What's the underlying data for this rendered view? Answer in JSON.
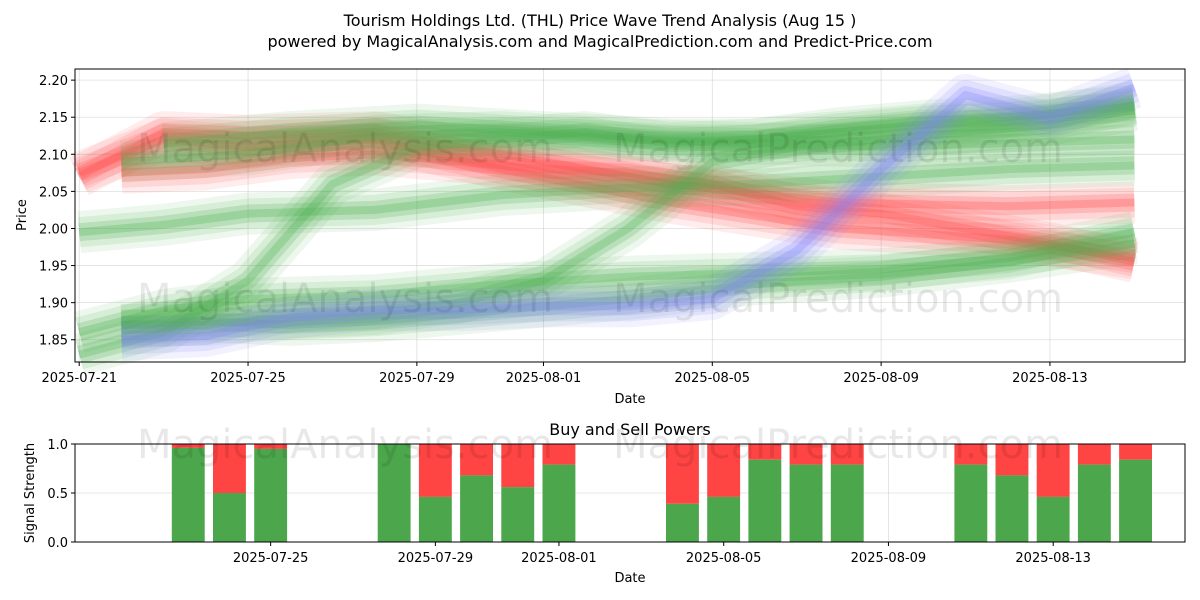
{
  "title": "Tourism Holdings Ltd. (THL) Price Wave Trend Analysis (Aug 15 )",
  "subtitle": "powered by MagicalAnalysis.com and MagicalPrediction.com and Predict-Price.com",
  "watermarks": [
    "MagicalAnalysis.com",
    "MagicalPrediction.com"
  ],
  "colors": {
    "green": "#4caf50",
    "red": "#ff4d4d",
    "blue": "#8080ff",
    "sell": "#ff4444",
    "buy": "#4ca64c"
  },
  "chart_data": [
    {
      "type": "area",
      "title": "",
      "xlabel": "Date",
      "ylabel": "Price",
      "xlim": [
        "2025-07-21",
        "2025-08-16"
      ],
      "ylim": [
        1.82,
        2.215
      ],
      "x_ticks": [
        "2025-07-21",
        "2025-07-25",
        "2025-07-29",
        "2025-08-01",
        "2025-08-05",
        "2025-08-09",
        "2025-08-13"
      ],
      "y_ticks": [
        "1.85",
        "1.90",
        "1.95",
        "2.00",
        "2.05",
        "2.10",
        "2.15",
        "2.20"
      ],
      "grid": true,
      "bands": [
        {
          "color": "red",
          "x": [
            "2025-07-21",
            "2025-07-23",
            "2025-07-25",
            "2025-07-28",
            "2025-07-31",
            "2025-08-04",
            "2025-08-08",
            "2025-08-12",
            "2025-08-15"
          ],
          "y": [
            2.07,
            2.13,
            2.125,
            2.13,
            2.1,
            2.06,
            2.035,
            2.03,
            2.035
          ]
        },
        {
          "color": "red",
          "x": [
            "2025-07-21",
            "2025-07-23",
            "2025-07-25",
            "2025-07-28",
            "2025-07-31",
            "2025-08-04",
            "2025-08-08",
            "2025-08-12",
            "2025-08-15"
          ],
          "y": [
            2.075,
            2.12,
            2.11,
            2.12,
            2.08,
            2.035,
            2.0,
            1.985,
            1.96
          ]
        },
        {
          "color": "red",
          "x": [
            "2025-07-22",
            "2025-07-24",
            "2025-07-26",
            "2025-07-28",
            "2025-07-30",
            "2025-08-01",
            "2025-08-03",
            "2025-08-05",
            "2025-08-07",
            "2025-08-09",
            "2025-08-11",
            "2025-08-13",
            "2025-08-15"
          ],
          "y": [
            2.075,
            2.08,
            2.095,
            2.1,
            2.09,
            2.08,
            2.075,
            2.06,
            2.03,
            2.02,
            2.0,
            1.98,
            1.955
          ]
        },
        {
          "color": "green",
          "x": [
            "2025-07-21",
            "2025-07-23",
            "2025-07-25",
            "2025-07-28",
            "2025-07-31",
            "2025-08-03",
            "2025-08-06",
            "2025-08-09",
            "2025-08-12",
            "2025-08-15"
          ],
          "y": [
            1.995,
            2.005,
            2.02,
            2.025,
            2.045,
            2.055,
            2.06,
            2.07,
            2.08,
            2.085
          ]
        },
        {
          "color": "green",
          "x": [
            "2025-07-21",
            "2025-07-23",
            "2025-07-25",
            "2025-07-28",
            "2025-07-31",
            "2025-08-03",
            "2025-08-06",
            "2025-08-09",
            "2025-08-12",
            "2025-08-15"
          ],
          "y": [
            1.86,
            1.89,
            1.905,
            1.91,
            1.925,
            1.935,
            1.94,
            1.945,
            1.96,
            1.995
          ]
        },
        {
          "color": "green",
          "x": [
            "2025-07-22",
            "2025-07-24",
            "2025-07-26",
            "2025-07-28",
            "2025-07-31",
            "2025-08-03",
            "2025-08-06",
            "2025-08-09",
            "2025-08-12",
            "2025-08-15"
          ],
          "y": [
            1.87,
            1.875,
            1.87,
            1.875,
            1.89,
            1.905,
            1.925,
            1.935,
            1.955,
            1.98
          ]
        },
        {
          "color": "green",
          "x": [
            "2025-07-21",
            "2025-07-23",
            "2025-07-25",
            "2025-07-27",
            "2025-07-29",
            "2025-07-31",
            "2025-08-02",
            "2025-08-04",
            "2025-08-06",
            "2025-08-08",
            "2025-08-10",
            "2025-08-12",
            "2025-08-15"
          ],
          "y": [
            1.83,
            1.86,
            1.93,
            2.06,
            2.11,
            2.12,
            2.13,
            2.115,
            2.12,
            2.13,
            2.14,
            2.145,
            2.17
          ]
        },
        {
          "color": "green",
          "x": [
            "2025-07-22",
            "2025-07-24",
            "2025-07-26",
            "2025-07-28",
            "2025-07-30",
            "2025-08-01",
            "2025-08-03",
            "2025-08-05",
            "2025-08-07",
            "2025-08-09",
            "2025-08-11",
            "2025-08-13",
            "2025-08-15"
          ],
          "y": [
            1.87,
            1.87,
            1.88,
            1.885,
            1.9,
            1.93,
            2.0,
            2.09,
            2.11,
            2.12,
            2.13,
            2.14,
            2.16
          ]
        },
        {
          "color": "green",
          "x": [
            "2025-07-22",
            "2025-07-25",
            "2025-07-28",
            "2025-07-31",
            "2025-08-03",
            "2025-08-06",
            "2025-08-09",
            "2025-08-12",
            "2025-08-15"
          ],
          "y": [
            2.09,
            2.1,
            2.125,
            2.13,
            2.12,
            2.115,
            2.11,
            2.115,
            2.12
          ]
        },
        {
          "color": "green",
          "x": [
            "2025-07-23",
            "2025-07-26",
            "2025-07-29",
            "2025-08-01",
            "2025-08-04",
            "2025-08-06",
            "2025-08-08",
            "2025-08-10",
            "2025-08-12",
            "2025-08-15"
          ],
          "y": [
            2.115,
            2.13,
            2.14,
            2.13,
            2.12,
            2.12,
            2.135,
            2.145,
            2.15,
            2.165
          ]
        },
        {
          "color": "blue",
          "x": [
            "2025-07-22",
            "2025-07-24",
            "2025-07-26",
            "2025-07-28",
            "2025-07-30",
            "2025-08-01",
            "2025-08-03",
            "2025-08-05",
            "2025-08-07",
            "2025-08-09",
            "2025-08-11",
            "2025-08-13",
            "2025-08-15"
          ],
          "y": [
            1.85,
            1.855,
            1.88,
            1.89,
            1.89,
            1.895,
            1.895,
            1.905,
            1.97,
            2.08,
            2.18,
            2.15,
            2.19
          ]
        }
      ]
    },
    {
      "type": "bar",
      "title": "Buy and Sell Powers",
      "xlabel": "Date",
      "ylabel": "Signal Strength",
      "ylim": [
        0,
        1
      ],
      "y_ticks": [
        "0.0",
        "0.5",
        "1.0"
      ],
      "x_ticks": [
        "2025-07-25",
        "2025-07-29",
        "2025-08-01",
        "2025-08-05",
        "2025-08-09",
        "2025-08-13"
      ],
      "series": [
        {
          "name": "",
          "color": "buy"
        },
        {
          "name": "",
          "color": "sell"
        }
      ],
      "bars": [
        {
          "date": "2025-07-23",
          "buy": 0.96
        },
        {
          "date": "2025-07-24",
          "buy": 0.5
        },
        {
          "date": "2025-07-25",
          "buy": 0.95
        },
        {
          "date": "2025-07-28",
          "buy": 1.0
        },
        {
          "date": "2025-07-29",
          "buy": 0.46
        },
        {
          "date": "2025-07-30",
          "buy": 0.68
        },
        {
          "date": "2025-07-31",
          "buy": 0.56
        },
        {
          "date": "2025-08-01",
          "buy": 0.79
        },
        {
          "date": "2025-08-04",
          "buy": 0.39
        },
        {
          "date": "2025-08-05",
          "buy": 0.46
        },
        {
          "date": "2025-08-06",
          "buy": 0.84
        },
        {
          "date": "2025-08-07",
          "buy": 0.79
        },
        {
          "date": "2025-08-08",
          "buy": 0.79
        },
        {
          "date": "2025-08-11",
          "buy": 0.79
        },
        {
          "date": "2025-08-12",
          "buy": 0.68
        },
        {
          "date": "2025-08-13",
          "buy": 0.46
        },
        {
          "date": "2025-08-14",
          "buy": 0.79
        },
        {
          "date": "2025-08-15",
          "buy": 0.84
        }
      ]
    }
  ]
}
